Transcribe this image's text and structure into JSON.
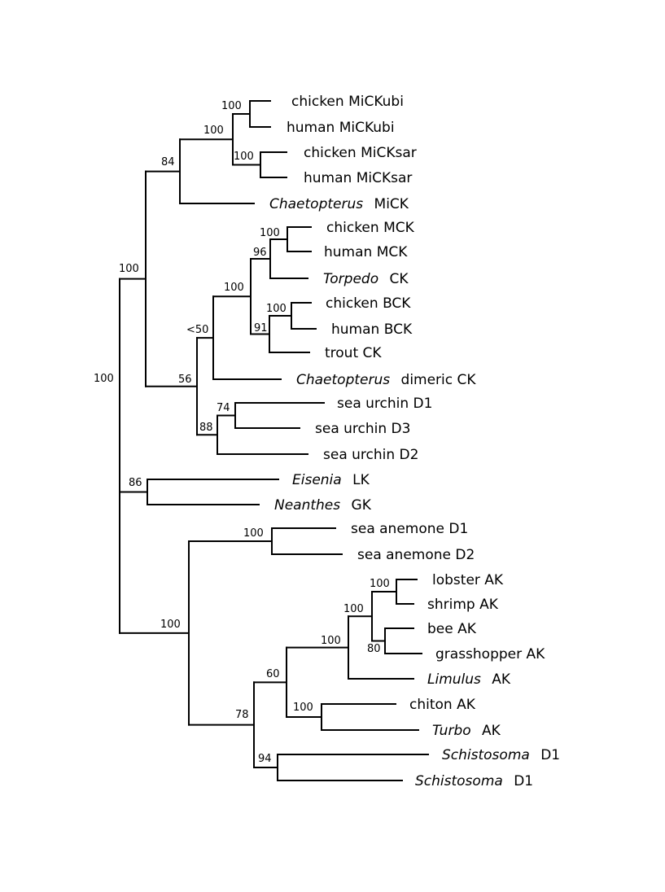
{
  "tree": {
    "support_values": {
      "n_mickubi": "100",
      "n_micksar": "100",
      "n_mick_core": "100",
      "n_mick": "84",
      "n_mck": "100",
      "n_muscle": "96",
      "n_bck": "100",
      "n_brain": "91",
      "n_vert": "100",
      "n_dimeric": "<50",
      "n_urchin_d1d3": "74",
      "n_urchin": "88",
      "n_ck_rest": "56",
      "n_ck": "100",
      "n_lk_gk": "86",
      "n_anemone": "100",
      "n_lobster_shrimp": "100",
      "n_bee_grass": "80",
      "n_arthropod_core": "100",
      "n_arthropod": "100",
      "n_mollusc": "100",
      "n_ak_core": "60",
      "n_schisto": "94",
      "n_ak_rest": "78",
      "n_ak": "100",
      "n_root": "100"
    },
    "leaves": [
      {
        "id": "chicken-mickubi",
        "label": "chicken MiCKubi"
      },
      {
        "id": "human-mickubi",
        "label": "human MiCKubi"
      },
      {
        "id": "chicken-micksar",
        "label": "chicken MiCKsar"
      },
      {
        "id": "human-micksar",
        "label": "human MiCKsar"
      },
      {
        "id": "chaetopterus-mick",
        "genus": "Chaetopterus",
        "label": "MiCK"
      },
      {
        "id": "chicken-mck",
        "label": "chicken MCK"
      },
      {
        "id": "human-mck",
        "label": "human MCK"
      },
      {
        "id": "torpedo-ck",
        "genus": "Torpedo",
        "label": "CK"
      },
      {
        "id": "chicken-bck",
        "label": "chicken BCK"
      },
      {
        "id": "human-bck",
        "label": "human BCK"
      },
      {
        "id": "trout-ck",
        "label": "trout CK"
      },
      {
        "id": "chaetopterus-dimeric-ck",
        "genus": "Chaetopterus",
        "label": "dimeric CK"
      },
      {
        "id": "sea-urchin-d1",
        "label": "sea urchin D1"
      },
      {
        "id": "sea-urchin-d3",
        "label": "sea urchin D3"
      },
      {
        "id": "sea-urchin-d2",
        "label": "sea urchin D2"
      },
      {
        "id": "eisenia-lk",
        "genus": "Eisenia",
        "label": "LK"
      },
      {
        "id": "neanthes-gk",
        "genus": "Neanthes",
        "label": "GK"
      },
      {
        "id": "sea-anemone-d1",
        "label": "sea anemone D1"
      },
      {
        "id": "sea-anemone-d2",
        "label": "sea anemone D2"
      },
      {
        "id": "lobster-ak",
        "label": "lobster AK"
      },
      {
        "id": "shrimp-ak",
        "label": "shrimp AK"
      },
      {
        "id": "bee-ak",
        "label": "bee AK"
      },
      {
        "id": "grasshopper-ak",
        "label": "grasshopper AK"
      },
      {
        "id": "limulus-ak",
        "genus": "Limulus",
        "label": "AK"
      },
      {
        "id": "chiton-ak",
        "label": "chiton AK"
      },
      {
        "id": "turbo-ak",
        "genus": "Turbo",
        "label": "AK"
      },
      {
        "id": "schistosoma-d1-a",
        "genus": "Schistosoma",
        "label": "D1"
      },
      {
        "id": "schistosoma-d1-b",
        "genus": "Schistosoma",
        "label": "D1"
      }
    ]
  }
}
